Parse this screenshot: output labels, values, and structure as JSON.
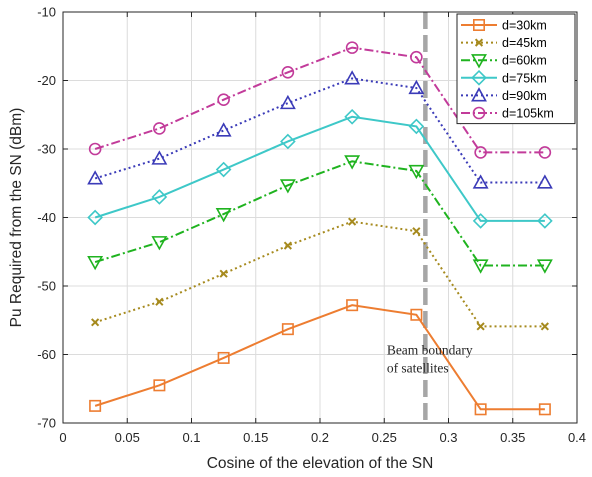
{
  "chart_data": {
    "type": "line",
    "title": "",
    "xlabel": "Cosine of the elevation of the SN",
    "ylabel": "Pu Required from the SN (dBm)",
    "xlim": [
      0,
      0.4
    ],
    "ylim": [
      -70,
      -10
    ],
    "xticks": [
      0,
      0.05,
      0.1,
      0.15,
      0.2,
      0.25,
      0.3,
      0.35,
      0.4
    ],
    "xtick_labels": [
      "0",
      "0.05",
      "0.1",
      "0.15",
      "0.2",
      "0.25",
      "0.3",
      "0.35",
      "0.4"
    ],
    "yticks": [
      -70,
      -60,
      -50,
      -40,
      -30,
      -20,
      -10
    ],
    "ytick_labels": [
      "-70",
      "-60",
      "-50",
      "-40",
      "-30",
      "-20",
      "-10"
    ],
    "grid": true,
    "legend_position": "top-right",
    "x": [
      0.025,
      0.075,
      0.125,
      0.175,
      0.225,
      0.275,
      0.325,
      0.375
    ],
    "series": [
      {
        "name": "d=30km",
        "color": "#ed7d31",
        "dash": "solid",
        "marker": "square",
        "values": [
          -67.5,
          -64.5,
          -60.5,
          -56.3,
          -52.8,
          -54.2,
          -68.0,
          -68.0
        ]
      },
      {
        "name": "d=45km",
        "color": "#a68a1e",
        "dash": "dotted",
        "marker": "x",
        "values": [
          -55.3,
          -52.3,
          -48.2,
          -44.1,
          -40.6,
          -42.0,
          -55.9,
          -55.9
        ]
      },
      {
        "name": "d=60km",
        "color": "#1fb31f",
        "dash": "dashdot",
        "marker": "triangle-down",
        "values": [
          -46.5,
          -43.6,
          -39.5,
          -35.3,
          -31.8,
          -33.2,
          -47.0,
          -47.0
        ]
      },
      {
        "name": "d=75km",
        "color": "#3ec8c8",
        "dash": "solid",
        "marker": "diamond",
        "values": [
          -40.0,
          -37.0,
          -33.0,
          -28.9,
          -25.3,
          -26.7,
          -40.5,
          -40.5
        ]
      },
      {
        "name": "d=90km",
        "color": "#3b3bb8",
        "dash": "dotted",
        "marker": "triangle-up",
        "values": [
          -34.3,
          -31.4,
          -27.3,
          -23.3,
          -19.7,
          -21.1,
          -34.9,
          -34.9
        ]
      },
      {
        "name": "d=105km",
        "color": "#c23b9a",
        "dash": "dashdot",
        "marker": "circle",
        "values": [
          -30.0,
          -27.0,
          -22.8,
          -18.8,
          -15.2,
          -16.6,
          -30.5,
          -30.5
        ]
      }
    ],
    "boundary_line": {
      "x": 0.282,
      "color": "#a6a6a6",
      "style": "dashed"
    },
    "annotation": {
      "lines": [
        "Beam boundary",
        "of satellites"
      ],
      "x": 0.252,
      "y": -60
    }
  }
}
